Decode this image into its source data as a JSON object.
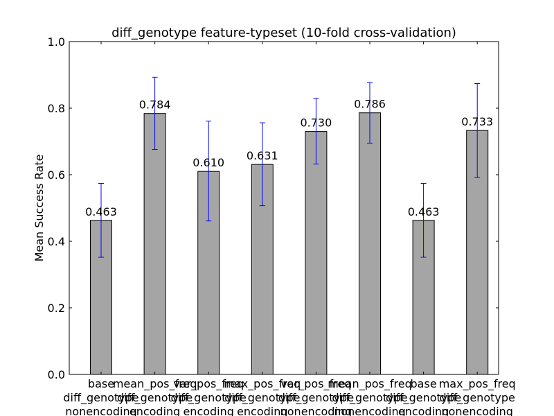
{
  "chart_data": {
    "type": "bar",
    "title": "diff_genotype feature-typeset (10-fold cross-validation)",
    "xlabel": "",
    "ylabel": "Mean Success Rate",
    "ylim": [
      0.0,
      1.0
    ],
    "yticks": [
      "0.0",
      "0.2",
      "0.4",
      "0.6",
      "0.8",
      "1.0"
    ],
    "grid": false,
    "bar_color": "#a5a5a5",
    "error_color": "#0000ff",
    "categories": [
      [
        "base",
        "diff_genotype",
        "nonencoding"
      ],
      [
        "mean_pos_freq",
        "diff_genotype",
        "encoding"
      ],
      [
        "var_pos_freq",
        "diff_genotype",
        "encoding"
      ],
      [
        "max_pos_freq",
        "diff_genotype",
        "encoding"
      ],
      [
        "var_pos_freq",
        "diff_genotype",
        "nonencoding"
      ],
      [
        "mean_pos_freq",
        "diff_genotype",
        "nonencoding"
      ],
      [
        "base",
        "diff_genotype",
        "encoding"
      ],
      [
        "max_pos_freq",
        "diff_genotype",
        "nonencoding"
      ]
    ],
    "values": [
      0.463,
      0.784,
      0.61,
      0.631,
      0.73,
      0.786,
      0.463,
      0.733
    ],
    "data_labels": [
      "0.463",
      "0.784",
      "0.610",
      "0.631",
      "0.730",
      "0.786",
      "0.463",
      "0.733"
    ],
    "error_low": [
      0.352,
      0.676,
      0.461,
      0.507,
      0.632,
      0.695,
      0.352,
      0.592
    ],
    "error_high": [
      0.574,
      0.893,
      0.761,
      0.756,
      0.829,
      0.877,
      0.574,
      0.874
    ]
  }
}
